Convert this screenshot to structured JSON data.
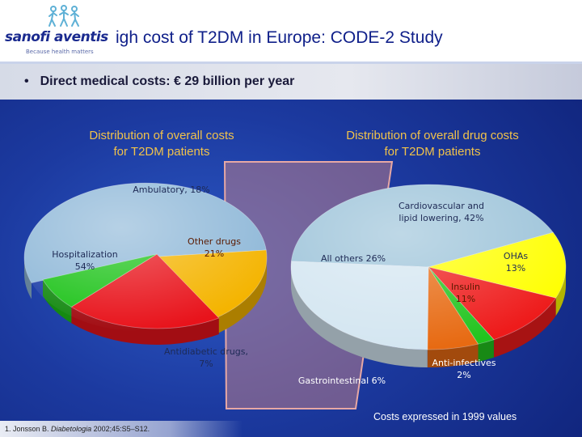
{
  "logo": {
    "brand": "sanofi aventis",
    "tagline": "Because health matters",
    "icon": "people-logo-icon",
    "colors": {
      "text": "#1a2a8f",
      "figures": "#5fb1d6"
    }
  },
  "title": "igh cost of T2DM in Europe: CODE-2 Study",
  "bullet": {
    "marker": "•",
    "text": "Direct medical costs: € 29 billion per year"
  },
  "footnote": {
    "prefix": "1. Jonsson B. ",
    "journal": "Diabetologia",
    "suffix": " 2002;45:S5–S12."
  },
  "costs_note": "Costs expressed in 1999 values",
  "colors": {
    "background": "#1c3aa0",
    "heading": "#f1c24a",
    "hospitalization": "#8fb8d8",
    "ambulatory": "#f4b400",
    "other_drugs": "#e8131b",
    "antidiabetic": "#1ec31a",
    "cardiovascular": "#9cc3d9",
    "ohas": "#ffff00",
    "insulin": "#ee1b1b",
    "anti_infectives": "#22c41e",
    "gastrointestinal": "#e76a12",
    "all_others": "#d4e6f1",
    "link": "#d98a84"
  },
  "chart_data": [
    {
      "type": "pie",
      "title": "Distribution of overall costs for T2DM patients",
      "title_lines": [
        "Distribution of overall costs",
        "for T2DM patients"
      ],
      "slices": [
        {
          "key": "hospitalization",
          "label_lines": [
            "Hospitalization",
            "54%"
          ],
          "value": 54,
          "label_color": "#1e2a55"
        },
        {
          "key": "ambulatory",
          "label_lines": [
            "Ambulatory, 18%"
          ],
          "value": 18,
          "label_color": "#1e2a55"
        },
        {
          "key": "other_drugs",
          "label_lines": [
            "Other drugs",
            "21%"
          ],
          "value": 21,
          "label_color": "#5a1a00"
        },
        {
          "key": "antidiabetic",
          "label_lines": [
            "Antidiabetic drugs,",
            "7%"
          ],
          "value": 7,
          "label_color": "#1e2a55"
        }
      ]
    },
    {
      "type": "pie",
      "title": "Distribution of overall drug costs for T2DM patients",
      "title_lines": [
        "Distribution of overall drug costs",
        "for T2DM patients"
      ],
      "slices": [
        {
          "key": "cardiovascular",
          "label_lines": [
            "Cardiovascular and",
            "lipid lowering, 42%"
          ],
          "value": 42,
          "label_color": "#1e2a55"
        },
        {
          "key": "ohas",
          "label_lines": [
            "OHAs",
            "13%"
          ],
          "value": 13,
          "label_color": "#1e2a55"
        },
        {
          "key": "insulin",
          "label_lines": [
            "Insulin",
            "11%"
          ],
          "value": 11,
          "label_color": "#5a1a00"
        },
        {
          "key": "anti_infectives",
          "label_lines": [
            "Anti-infectives",
            "2%"
          ],
          "value": 2,
          "label_color": "#ffffff"
        },
        {
          "key": "gastrointestinal",
          "label_lines": [
            "Gastrointestinal 6%"
          ],
          "value": 6,
          "label_color": "#ffffff"
        },
        {
          "key": "all_others",
          "label_lines": [
            "All others 26%"
          ],
          "value": 26,
          "label_color": "#1e2a55"
        }
      ]
    }
  ]
}
